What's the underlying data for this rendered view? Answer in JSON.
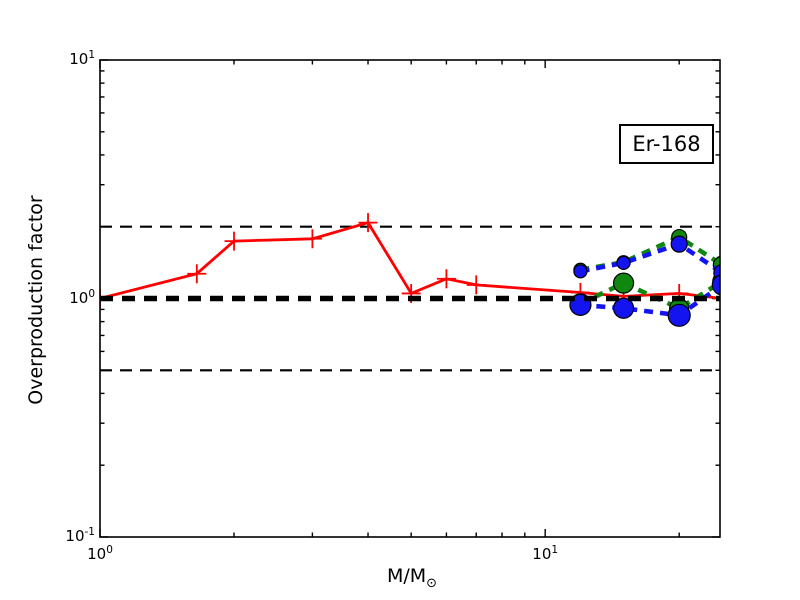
{
  "figure": {
    "background": "#ffffff"
  },
  "chart_data": {
    "type": "line",
    "title": "",
    "annotation": "Er-168",
    "xlabel": {
      "main": "M/M",
      "sub": "⊙"
    },
    "ylabel": "Overproduction factor",
    "xscale": "log",
    "yscale": "log",
    "xlim": [
      1.0,
      24.7
    ],
    "ylim": [
      0.1,
      10.0
    ],
    "grid": false,
    "legend": "none",
    "x_ticks": [
      {
        "value": 1,
        "base": "10",
        "exp": "0"
      },
      {
        "value": 10,
        "base": "10",
        "exp": "1"
      }
    ],
    "x_minor_ticks": [
      2,
      3,
      4,
      5,
      6,
      7,
      8,
      9,
      20
    ],
    "y_ticks": [
      {
        "value": 0.1,
        "base": "10",
        "exp": "-1"
      },
      {
        "value": 1,
        "base": "10",
        "exp": "0"
      },
      {
        "value": 10,
        "base": "10",
        "exp": "1"
      }
    ],
    "y_minor_ticks": [
      0.2,
      0.3,
      0.4,
      0.5,
      0.6,
      0.7,
      0.8,
      0.9,
      2,
      3,
      4,
      5,
      6,
      7,
      8,
      9
    ],
    "reference_lines": [
      {
        "y": 2.0,
        "color": "#000000",
        "width": 2.2,
        "dash": "12 8",
        "layer": "below"
      },
      {
        "y": 0.5,
        "color": "#000000",
        "width": 2.2,
        "dash": "12 8",
        "layer": "below"
      },
      {
        "y": 1.0,
        "color": "#000000",
        "width": 5.5,
        "dash": "13 9",
        "layer": "above"
      }
    ],
    "series": [
      {
        "name": "red-solid-plus",
        "color": "#ff0000",
        "linestyle": "solid",
        "linewidth": 2.8,
        "marker": "plus",
        "marker_size": 9.5,
        "x": [
          1.0,
          1.65,
          2.0,
          3.0,
          4.0,
          5.0,
          6.0,
          7.0,
          12.0,
          15.0,
          20.0,
          25.0
        ],
        "y": [
          1.0,
          1.27,
          1.74,
          1.78,
          2.08,
          1.05,
          1.21,
          1.14,
          1.06,
          1.02,
          1.05,
          1.0
        ]
      },
      {
        "name": "green-dashed-upper",
        "color": "#108810",
        "linestyle": "dashed",
        "linewidth": 4.6,
        "dash": "9 7",
        "marker": "circle",
        "x": [
          12.0,
          15.0,
          20.0,
          25.0
        ],
        "y": [
          1.32,
          1.42,
          1.81,
          1.38
        ],
        "marker_radii": [
          6.5,
          6.5,
          7.5,
          9
        ]
      },
      {
        "name": "green-dashed-lower",
        "color": "#108810",
        "linestyle": "dashed",
        "linewidth": 4.6,
        "dash": "9 7",
        "marker": "circle",
        "x": [
          12.0,
          15.0,
          20.0,
          25.0
        ],
        "y": [
          0.95,
          1.16,
          0.91,
          1.18
        ],
        "marker_radii": [
          10,
          10,
          9.5,
          9.5
        ]
      },
      {
        "name": "blue-dashed-upper",
        "color": "#1414f0",
        "linestyle": "dashed",
        "linewidth": 4.6,
        "dash": "9 7",
        "marker": "circle",
        "x": [
          12.0,
          15.0,
          20.0,
          25.0
        ],
        "y": [
          1.3,
          1.41,
          1.69,
          1.28
        ],
        "marker_radii": [
          6.5,
          6.5,
          8,
          8.5
        ]
      },
      {
        "name": "blue-dashed-lower",
        "color": "#1414f0",
        "linestyle": "dashed",
        "linewidth": 4.6,
        "dash": "9 7",
        "marker": "circle",
        "x": [
          12.0,
          15.0,
          20.0,
          25.0
        ],
        "y": [
          0.94,
          0.91,
          0.85,
          1.14
        ],
        "marker_radii": [
          10.5,
          10,
          11,
          10
        ]
      }
    ]
  }
}
